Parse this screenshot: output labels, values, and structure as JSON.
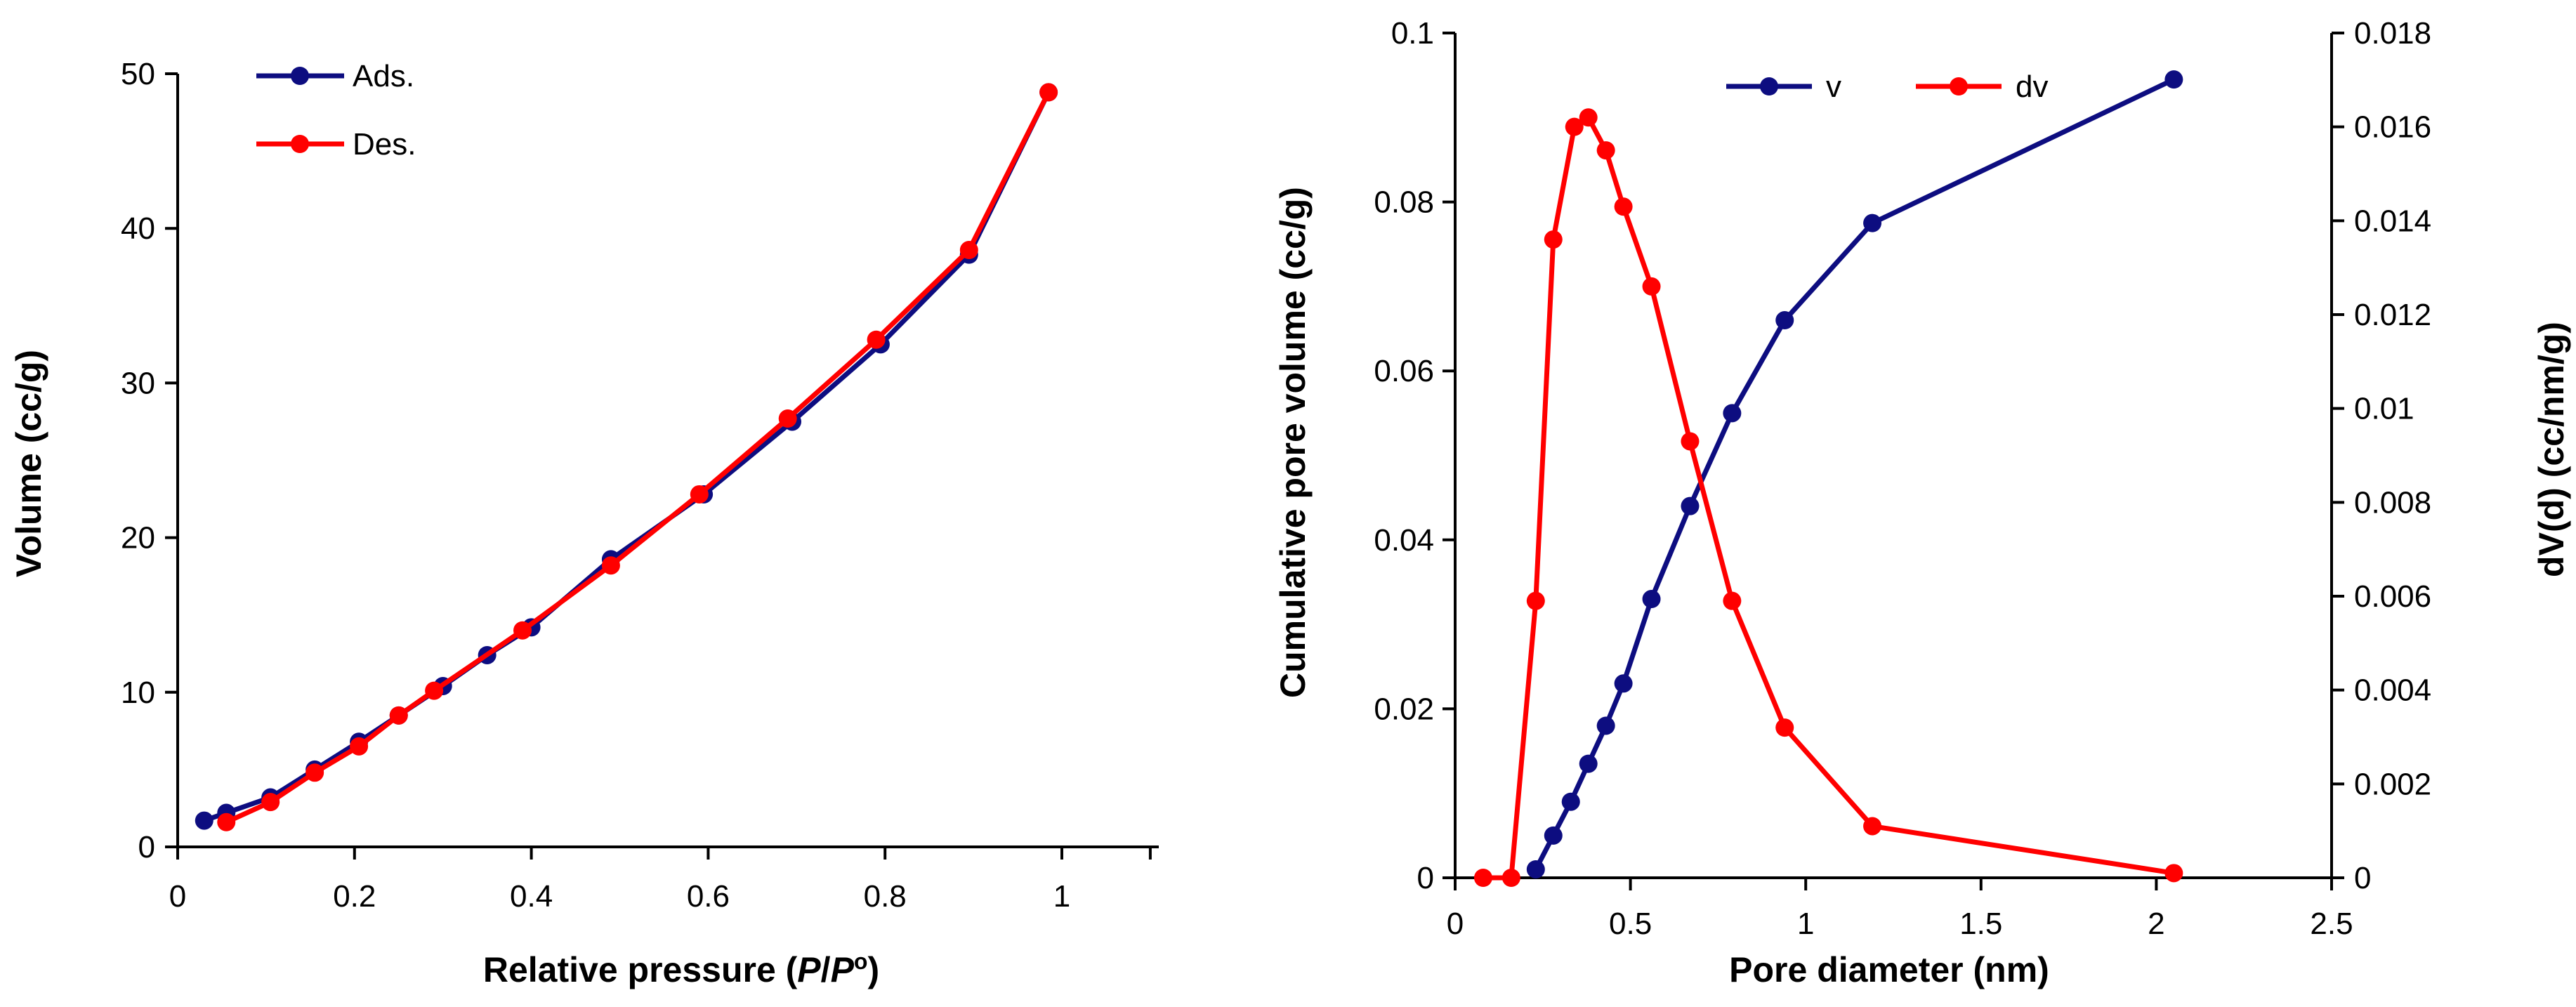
{
  "colors": {
    "blue": "#0d0d80",
    "red": "#ff0000",
    "axis": "#000000"
  },
  "chart_data": [
    {
      "type": "line",
      "xlabel_main": "Relative pressure (",
      "xlabel_italic_p1": "P",
      "xlabel_slash": "/",
      "xlabel_italic_p2": "P",
      "xlabel_sup": "o",
      "xlabel_end": ")",
      "ylabel": "Volume (cc/g)",
      "xlim": [
        0,
        1.1
      ],
      "ylim": [
        0,
        50
      ],
      "x_ticks": [
        0,
        0.2,
        0.4,
        0.6,
        0.8,
        1
      ],
      "x_tick_labels": [
        "0",
        "0.2",
        "0.4",
        "0.6",
        "0.8",
        "1"
      ],
      "y_ticks": [
        0,
        10,
        20,
        30,
        40,
        50
      ],
      "y_tick_labels": [
        "0",
        "10",
        "20",
        "30",
        "40",
        "50"
      ],
      "legend": [
        "Ads.",
        "Des."
      ],
      "series": [
        {
          "name": "Ads.",
          "color": "#0d0d80",
          "x": [
            0.03,
            0.055,
            0.105,
            0.155,
            0.205,
            0.25,
            0.3,
            0.35,
            0.4,
            0.49,
            0.595,
            0.695,
            0.795,
            0.895,
            0.985
          ],
          "y": [
            1.7,
            2.2,
            3.2,
            5.0,
            6.8,
            8.5,
            10.4,
            12.4,
            14.2,
            18.6,
            22.8,
            27.5,
            32.5,
            38.3,
            48.8
          ]
        },
        {
          "name": "Des.",
          "color": "#ff0000",
          "x": [
            0.055,
            0.105,
            0.155,
            0.205,
            0.25,
            0.29,
            0.39,
            0.49,
            0.59,
            0.69,
            0.79,
            0.895,
            0.985
          ],
          "y": [
            1.6,
            2.9,
            4.8,
            6.5,
            8.5,
            10.1,
            14.0,
            18.2,
            22.8,
            27.7,
            32.8,
            38.6,
            48.8
          ]
        }
      ]
    },
    {
      "type": "line",
      "xlabel": "Pore diameter (nm)",
      "ylabel": "Cumulative pore volume (cc/g)",
      "y2label": "dV(d) (cc/nm/g)",
      "xlim": [
        0,
        2.5
      ],
      "ylim": [
        0,
        0.1
      ],
      "y2lim": [
        0,
        0.018
      ],
      "x_ticks": [
        0,
        0.5,
        1,
        1.5,
        2,
        2.5
      ],
      "x_tick_labels": [
        "0",
        "0.5",
        "1",
        "1.5",
        "2",
        "2.5"
      ],
      "y_ticks": [
        0,
        0.02,
        0.04,
        0.06,
        0.08,
        0.1
      ],
      "y_tick_labels": [
        "0",
        "0.02",
        "0.04",
        "0.06",
        "0.08",
        "0.1"
      ],
      "y2_ticks": [
        0,
        0.002,
        0.004,
        0.006,
        0.008,
        0.01,
        0.012,
        0.014,
        0.016,
        0.018
      ],
      "y2_tick_labels": [
        "0",
        "0.002",
        "0.004",
        "0.006",
        "0.008",
        "0.01",
        "0.012",
        "0.014",
        "0.016",
        "0.018"
      ],
      "legend": [
        "v",
        "dv"
      ],
      "series": [
        {
          "name": "v",
          "axis": "left",
          "color": "#0d0d80",
          "x": [
            0.23,
            0.28,
            0.33,
            0.38,
            0.43,
            0.48,
            0.56,
            0.67,
            0.79,
            0.94,
            1.19,
            2.05
          ],
          "y": [
            0.001,
            0.005,
            0.009,
            0.0135,
            0.018,
            0.023,
            0.033,
            0.044,
            0.055,
            0.066,
            0.0775,
            0.0945
          ]
        },
        {
          "name": "dv",
          "axis": "right",
          "color": "#ff0000",
          "x": [
            0.08,
            0.16,
            0.23,
            0.28,
            0.34,
            0.38,
            0.43,
            0.48,
            0.56,
            0.67,
            0.79,
            0.94,
            1.19,
            2.05
          ],
          "y": [
            0.0,
            0.0,
            0.0059,
            0.0136,
            0.016,
            0.0162,
            0.0155,
            0.0143,
            0.0126,
            0.0093,
            0.0059,
            0.0032,
            0.0011,
            0.0001
          ]
        }
      ]
    }
  ]
}
